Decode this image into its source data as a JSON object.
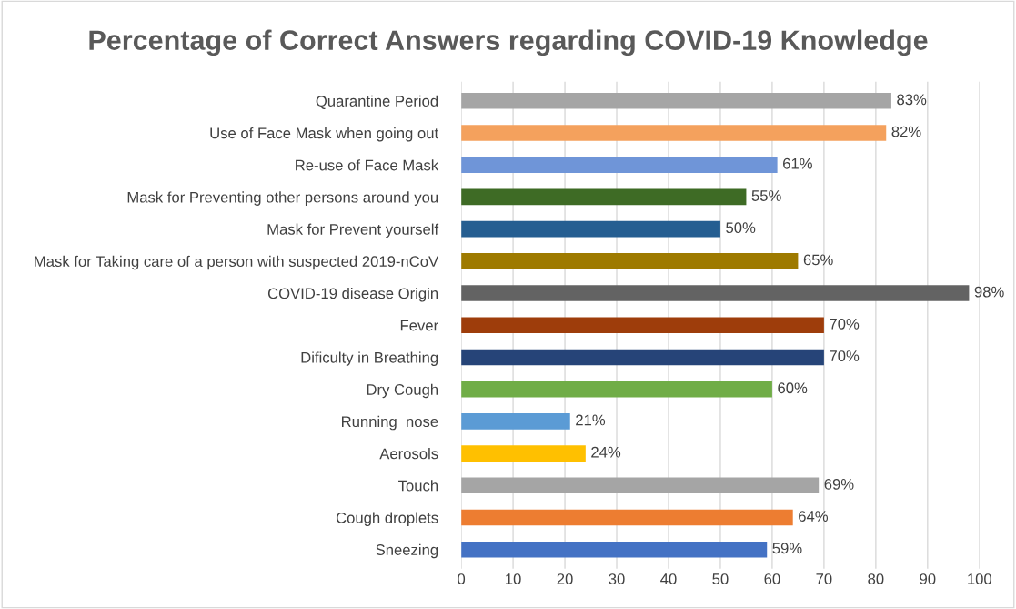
{
  "chart_data": {
    "type": "bar",
    "orientation": "horizontal",
    "title": "Percentage of Correct Answers regarding COVID-19 Knowledge",
    "categories": [
      "Quarantine Period",
      "Use of Face Mask when going out",
      "Re-use of Face Mask",
      "Mask for Preventing other persons around you",
      "Mask for Prevent yourself",
      "Mask for Taking care of a person with suspected 2019-nCoV",
      "COVID-19 disease Origin",
      "Fever",
      "Dificulty in Breathing",
      "Dry Cough",
      "Running  nose",
      "Aerosols",
      "Touch",
      "Cough droplets",
      "Sneezing"
    ],
    "values": [
      83,
      82,
      61,
      55,
      50,
      65,
      98,
      70,
      70,
      60,
      21,
      24,
      69,
      64,
      59
    ],
    "value_labels": [
      "83%",
      "82%",
      "61%",
      "55%",
      "50%",
      "65%",
      "98%",
      "70%",
      "70%",
      "60%",
      "21%",
      "24%",
      "69%",
      "64%",
      "59%"
    ],
    "colors": [
      "#a5a5a5",
      "#f4a15d",
      "#6f95d8",
      "#3e6b25",
      "#255e91",
      "#9e7a00",
      "#636363",
      "#9e3d0b",
      "#264478",
      "#70ad47",
      "#5b9bd5",
      "#ffc000",
      "#a5a5a5",
      "#ed7d31",
      "#4472c4"
    ],
    "xlim": [
      0,
      100
    ],
    "xticks": [
      0,
      10,
      20,
      30,
      40,
      50,
      60,
      70,
      80,
      90,
      100
    ],
    "grid": "x"
  }
}
